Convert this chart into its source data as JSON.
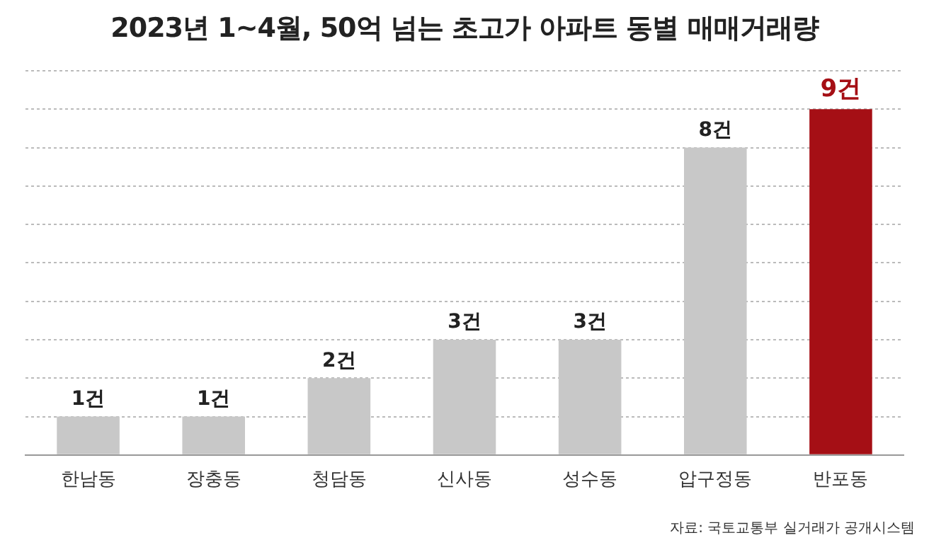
{
  "chart_data": {
    "type": "bar",
    "title": "2023년 1~4월, 50억 넘는 초고가 아파트 동별 매매거래량",
    "categories": [
      "한남동",
      "장충동",
      "청담동",
      "신사동",
      "성수동",
      "압구정동",
      "반포동"
    ],
    "values": [
      1,
      1,
      2,
      3,
      3,
      8,
      9
    ],
    "value_labels": [
      "1건",
      "1건",
      "2건",
      "3건",
      "3건",
      "8건",
      "9건"
    ],
    "colors": [
      "#c8c8c8",
      "#c8c8c8",
      "#c8c8c8",
      "#c8c8c8",
      "#c8c8c8",
      "#c8c8c8",
      "#a50f15"
    ],
    "ylim": [
      0,
      10
    ],
    "yticks": [
      {
        "value": 0,
        "label": null
      },
      {
        "value": 1,
        "label": null
      },
      {
        "value": 2,
        "label": null
      },
      {
        "value": 3,
        "label": null
      },
      {
        "value": 4,
        "label": null
      },
      {
        "value": 5,
        "label": null
      },
      {
        "value": 6,
        "label": null
      },
      {
        "value": 7,
        "label": null
      },
      {
        "value": 8,
        "label": null
      },
      {
        "value": 9,
        "label": null
      },
      {
        "value": 10,
        "label": null
      }
    ],
    "tick_labels": "x",
    "grid": "y",
    "annotations": [
      "자료: 국토교통부 실거래가 공개시스템"
    ]
  }
}
